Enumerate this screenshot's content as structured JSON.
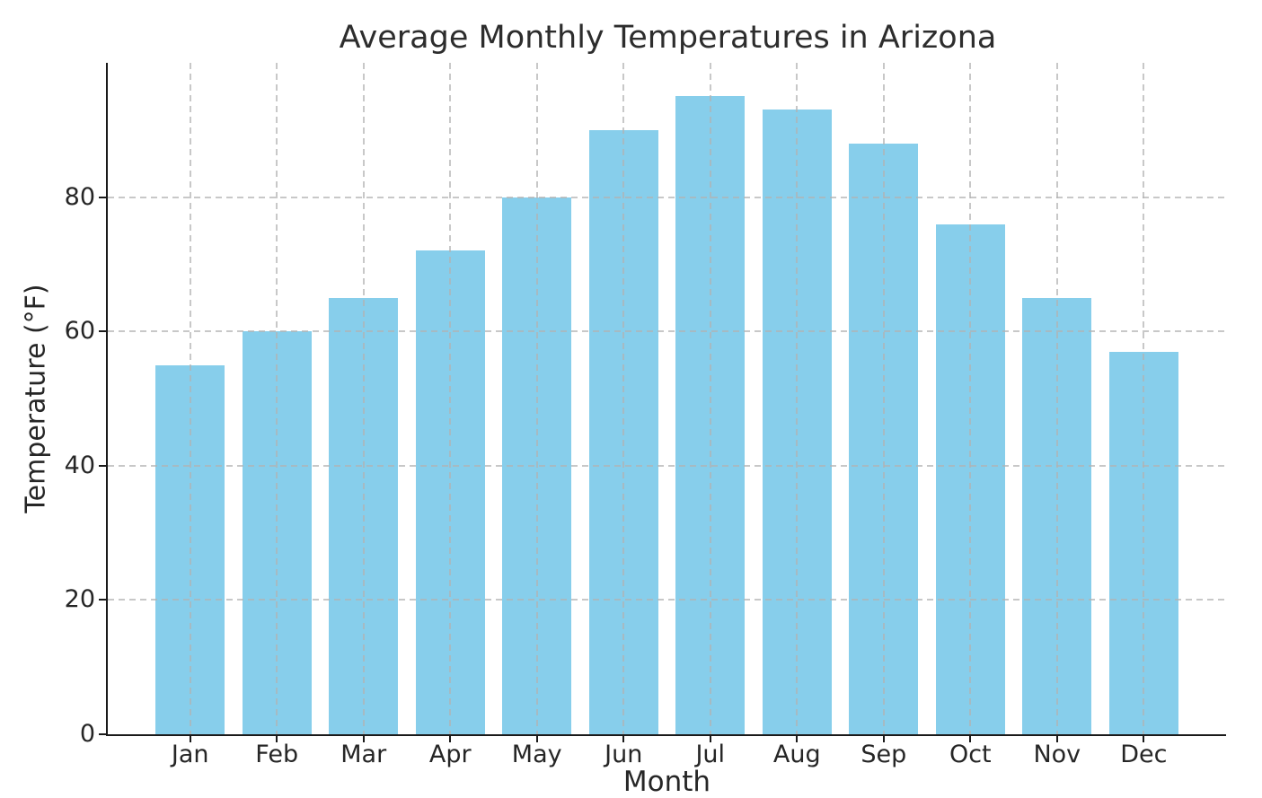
{
  "chart_data": {
    "type": "bar",
    "title": "Average Monthly Temperatures in Arizona",
    "xlabel": "Month",
    "ylabel": "Temperature (°F)",
    "categories": [
      "Jan",
      "Feb",
      "Mar",
      "Apr",
      "May",
      "Jun",
      "Jul",
      "Aug",
      "Sep",
      "Oct",
      "Nov",
      "Dec"
    ],
    "values": [
      55,
      60,
      65,
      72,
      80,
      90,
      95,
      93,
      88,
      76,
      65,
      57
    ],
    "ylim": [
      0,
      100
    ],
    "yticks": [
      0,
      20,
      40,
      60,
      80
    ],
    "grid": {
      "enabled": true,
      "style": "dashed",
      "axes": "both",
      "drawn_over_bars": true
    },
    "legend": "none",
    "colors": {
      "bar": "#87CEEB",
      "grid": "#cccccc",
      "spine": "#1a1a1a",
      "text": "#262626",
      "background": "#ffffff"
    }
  }
}
